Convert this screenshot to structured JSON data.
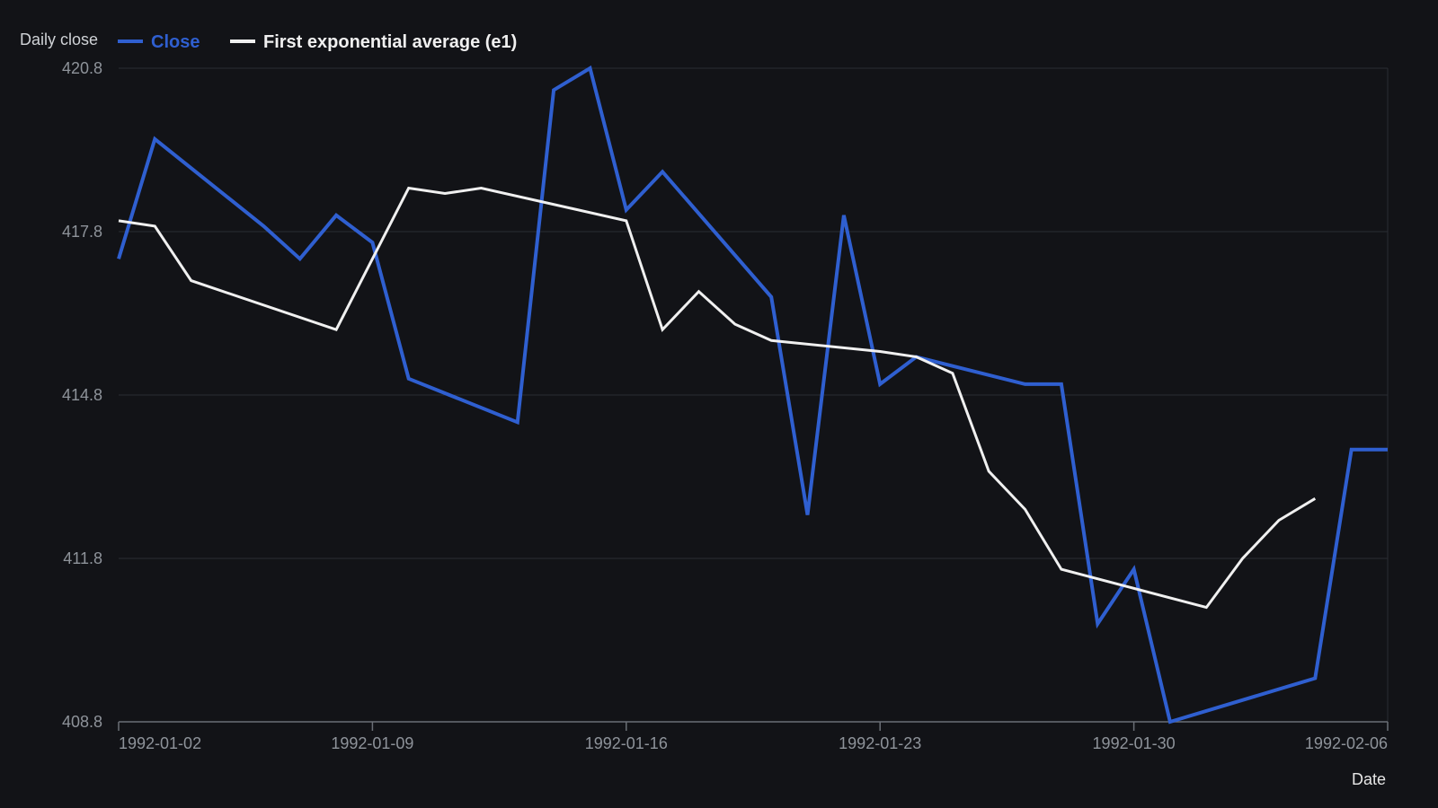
{
  "chart_data": {
    "type": "line",
    "ylabel": "Daily close",
    "xlabel": "Date",
    "ylim": [
      408.8,
      420.8
    ],
    "yticks": [
      "420.8",
      "417.8",
      "414.8",
      "411.8",
      "408.8"
    ],
    "xlim": [
      "1992-01-02",
      "1992-02-06"
    ],
    "xticks": [
      "1992-01-02",
      "1992-01-09",
      "1992-01-16",
      "1992-01-23",
      "1992-01-30",
      "1992-02-06"
    ],
    "grid": true,
    "legend_position": "top-left",
    "colors": {
      "close": "#2f5fd0",
      "e1": "#f0f0f0",
      "background": "#121317",
      "grid": "#2a2d33"
    },
    "series": [
      {
        "name": "Close",
        "points": [
          [
            "1992-01-02",
            417.3
          ],
          [
            "1992-01-03",
            419.5
          ],
          [
            "1992-01-06",
            417.9
          ],
          [
            "1992-01-07",
            417.3
          ],
          [
            "1992-01-08",
            418.1
          ],
          [
            "1992-01-09",
            417.6
          ],
          [
            "1992-01-10",
            415.1
          ],
          [
            "1992-01-13",
            414.3
          ],
          [
            "1992-01-14",
            420.4
          ],
          [
            "1992-01-15",
            420.8
          ],
          [
            "1992-01-16",
            418.2
          ],
          [
            "1992-01-17",
            418.9
          ],
          [
            "1992-01-20",
            416.6
          ],
          [
            "1992-01-21",
            412.6
          ],
          [
            "1992-01-22",
            418.1
          ],
          [
            "1992-01-23",
            415.0
          ],
          [
            "1992-01-24",
            415.5
          ],
          [
            "1992-01-27",
            415.0
          ],
          [
            "1992-01-28",
            415.0
          ],
          [
            "1992-01-29",
            410.6
          ],
          [
            "1992-01-30",
            411.6
          ],
          [
            "1992-01-31",
            408.8
          ],
          [
            "1992-02-04",
            409.6
          ],
          [
            "1992-02-05",
            413.8
          ],
          [
            "1992-02-06",
            413.8
          ]
        ]
      },
      {
        "name": "First exponential average (e1)",
        "points": [
          [
            "1992-01-02",
            418.0
          ],
          [
            "1992-01-03",
            417.9
          ],
          [
            "1992-01-04",
            416.9
          ],
          [
            "1992-01-08",
            416.0
          ],
          [
            "1992-01-09",
            417.3
          ],
          [
            "1992-01-10",
            418.6
          ],
          [
            "1992-01-11",
            418.5
          ],
          [
            "1992-01-12",
            418.6
          ],
          [
            "1992-01-16",
            418.0
          ],
          [
            "1992-01-17",
            416.0
          ],
          [
            "1992-01-18",
            416.7
          ],
          [
            "1992-01-19",
            416.1
          ],
          [
            "1992-01-20",
            415.8
          ],
          [
            "1992-01-23",
            415.6
          ],
          [
            "1992-01-24",
            415.5
          ],
          [
            "1992-01-25",
            415.2
          ],
          [
            "1992-01-26",
            413.4
          ],
          [
            "1992-01-27",
            412.7
          ],
          [
            "1992-01-28",
            411.6
          ],
          [
            "1992-02-01",
            410.9
          ],
          [
            "1992-02-02",
            411.8
          ],
          [
            "1992-02-03",
            412.5
          ],
          [
            "1992-02-04",
            412.9
          ]
        ]
      }
    ]
  }
}
